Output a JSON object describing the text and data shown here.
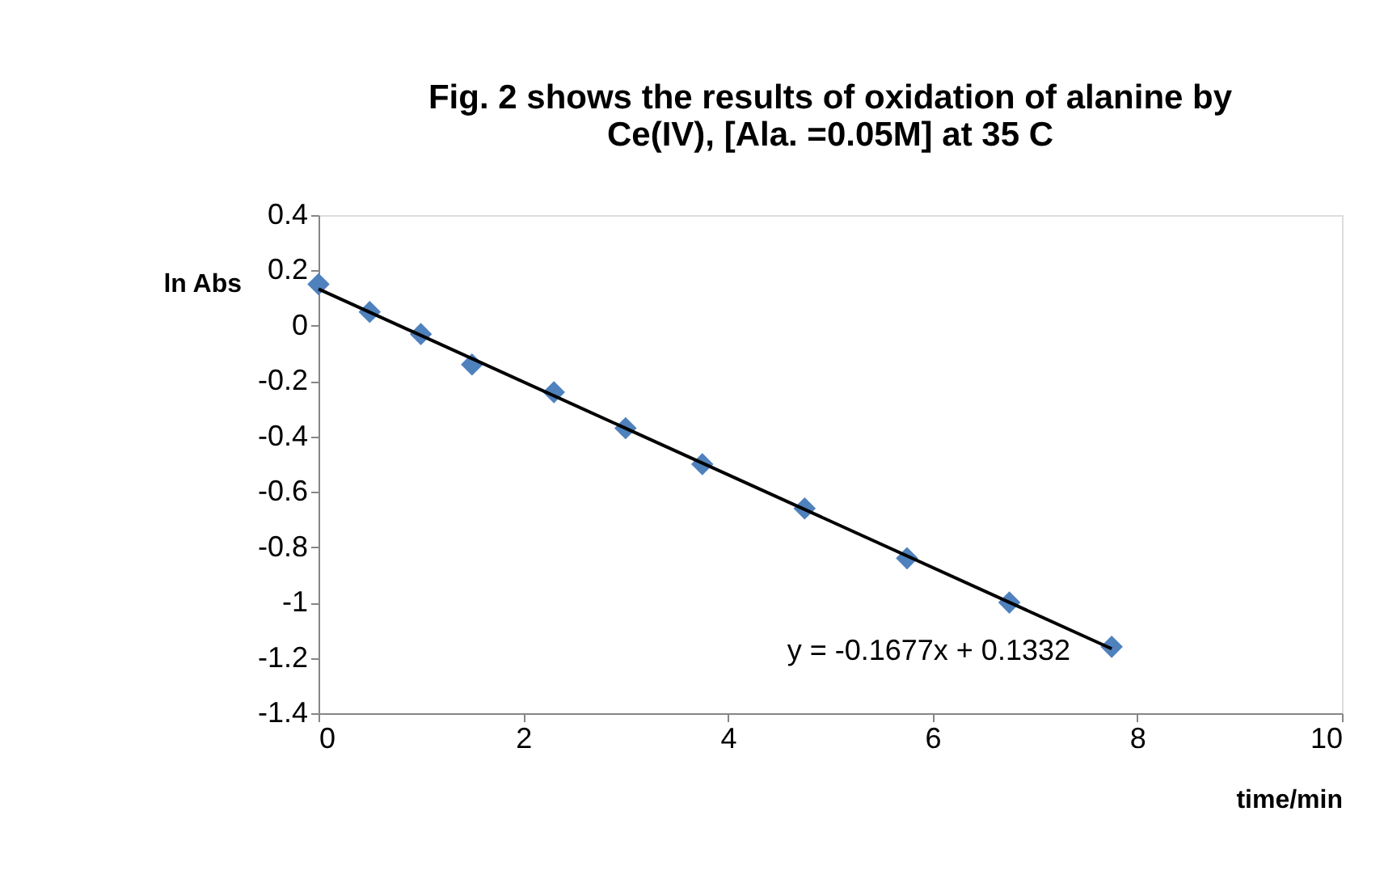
{
  "chart_data": {
    "type": "scatter",
    "title": "Fig. 2 shows the results of oxidation of alanine by Ce(IV), [Ala. =0.05M] at 35 C",
    "xlabel": "time/min",
    "ylabel": "ln Abs",
    "x": [
      0,
      0.5,
      1,
      1.5,
      2.3,
      3,
      3.75,
      4.75,
      5.75,
      6.75,
      7.75
    ],
    "series": [
      {
        "color": "#4f81bd",
        "marker": "diamond",
        "values": [
          0.15,
          0.05,
          -0.03,
          -0.14,
          -0.24,
          -0.37,
          -0.5,
          -0.66,
          -0.84,
          -1.0,
          -1.16
        ]
      },
      {
        "type": "line",
        "color": "#000000",
        "marker": "none",
        "line_style": "solid",
        "x": [
          0,
          7.75
        ],
        "values": [
          0.133,
          -1.167
        ]
      }
    ],
    "annotations": [
      "y = -0.1677x + 0.1332"
    ],
    "xlim": [
      0,
      10
    ],
    "xticks": [
      0,
      2,
      4,
      6,
      8,
      10
    ],
    "ylim": [
      -1.4,
      0.4
    ],
    "yticks": [
      -1.4,
      -1.2,
      -1,
      -0.8,
      -0.6,
      -0.4,
      -0.2,
      0,
      0.2,
      0.4
    ],
    "grid": false
  }
}
